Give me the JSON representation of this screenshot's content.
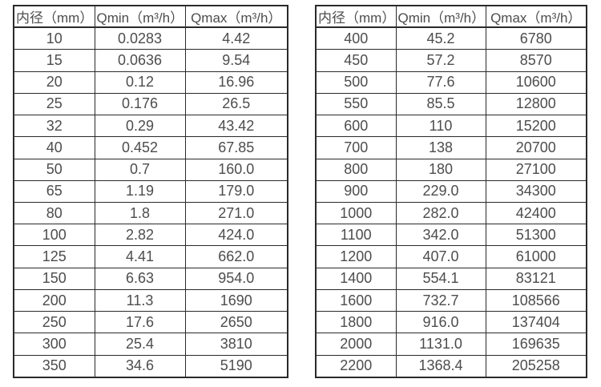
{
  "colors": {
    "background": "#ffffff",
    "text": "#4d4d4d",
    "border": "#2a2a2a"
  },
  "tables": [
    {
      "name": "flow-table-small-diameters",
      "headers": [
        "内径（mm）",
        "Qmin（m³/h）",
        "Qmax（m³/h）"
      ],
      "rows": [
        [
          "10",
          "0.0283",
          "4.42"
        ],
        [
          "15",
          "0.0636",
          "9.54"
        ],
        [
          "20",
          "0.12",
          "16.96"
        ],
        [
          "25",
          "0.176",
          "26.5"
        ],
        [
          "32",
          "0.29",
          "43.42"
        ],
        [
          "40",
          "0.452",
          "67.85"
        ],
        [
          "50",
          "0.7",
          "160.0"
        ],
        [
          "65",
          "1.19",
          "179.0"
        ],
        [
          "80",
          "1.8",
          "271.0"
        ],
        [
          "100",
          "2.82",
          "424.0"
        ],
        [
          "125",
          "4.41",
          "662.0"
        ],
        [
          "150",
          "6.63",
          "954.0"
        ],
        [
          "200",
          "11.3",
          "1690"
        ],
        [
          "250",
          "17.6",
          "2650"
        ],
        [
          "300",
          "25.4",
          "3810"
        ],
        [
          "350",
          "34.6",
          "5190"
        ]
      ]
    },
    {
      "name": "flow-table-large-diameters",
      "headers": [
        "内径（mm）",
        "Qmin（m³/h）",
        "Qmax（m³/h）"
      ],
      "rows": [
        [
          "400",
          "45.2",
          "6780"
        ],
        [
          "450",
          "57.2",
          "8570"
        ],
        [
          "500",
          "77.6",
          "10600"
        ],
        [
          "550",
          "85.5",
          "12800"
        ],
        [
          "600",
          "110",
          "15200"
        ],
        [
          "700",
          "138",
          "20700"
        ],
        [
          "800",
          "180",
          "27100"
        ],
        [
          "900",
          "229.0",
          "34300"
        ],
        [
          "1000",
          "282.0",
          "42400"
        ],
        [
          "1100",
          "342.0",
          "51300"
        ],
        [
          "1200",
          "407.0",
          "61000"
        ],
        [
          "1400",
          "554.1",
          "83121"
        ],
        [
          "1600",
          "732.7",
          "108566"
        ],
        [
          "1800",
          "916.0",
          "137404"
        ],
        [
          "2000",
          "1131.0",
          "169635"
        ],
        [
          "2200",
          "1368.4",
          "205258"
        ]
      ]
    }
  ]
}
